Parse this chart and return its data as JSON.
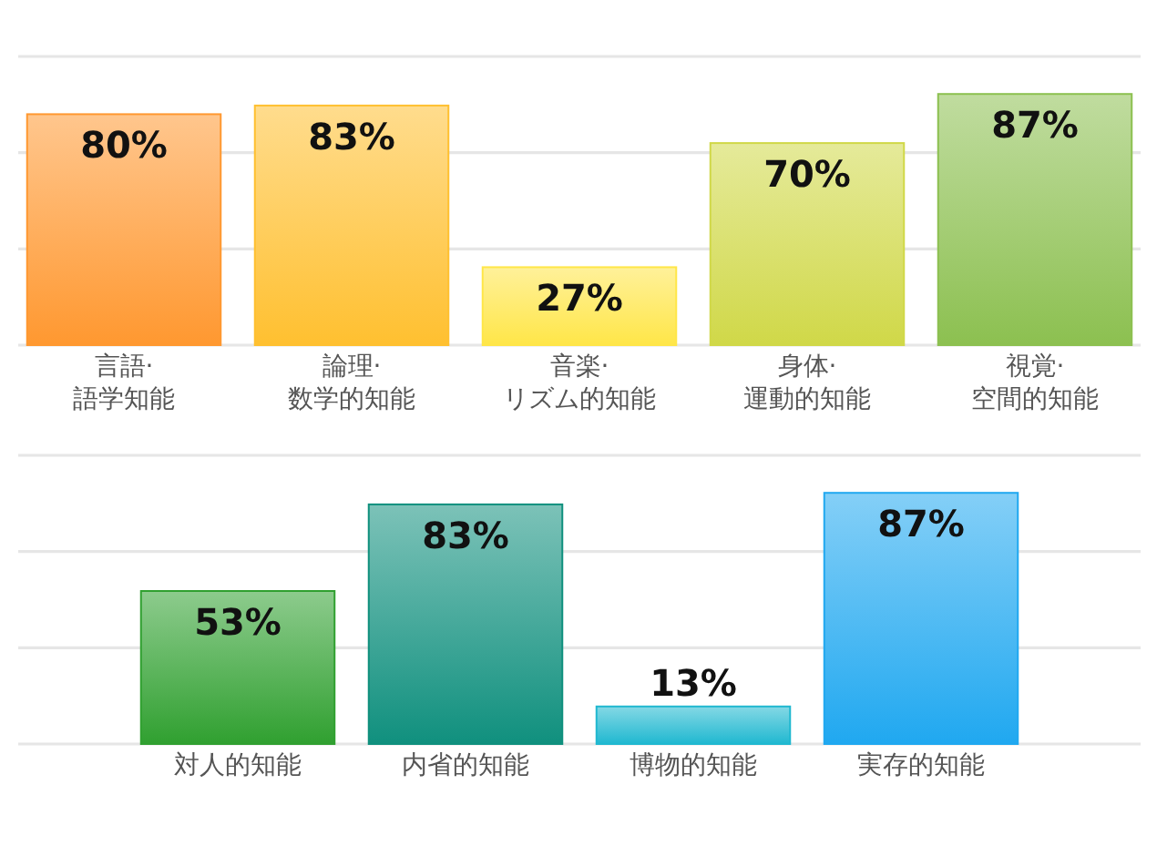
{
  "chart_data": [
    {
      "type": "bar",
      "categories": [
        "言語·\n語学知能",
        "論理·\n数学的知能",
        "音楽·\nリズム的知能",
        "身体·\n運動的知能",
        "視覚·\n空間的知能"
      ],
      "values": [
        80,
        83,
        27,
        70,
        87
      ],
      "colors": [
        "#ff9830",
        "#ffc030",
        "#ffe648",
        "#d0d848",
        "#8cc050"
      ],
      "value_labels": [
        "80%",
        "83%",
        "27%",
        "70%",
        "87%"
      ],
      "ylim": [
        0,
        100
      ],
      "yticks": [
        {
          "value": 0,
          "label": null
        },
        {
          "value": 33.3,
          "label": null
        },
        {
          "value": 66.7,
          "label": null
        },
        {
          "value": 100,
          "label": null
        }
      ],
      "grid": "y",
      "tick_labels": "x"
    },
    {
      "type": "bar",
      "categories": [
        "対人的知能",
        "内省的知能",
        "博物的知能",
        "実存的知能"
      ],
      "values": [
        53,
        83,
        13,
        87
      ],
      "colors": [
        "#30a030",
        "#10907e",
        "#20b8d0",
        "#20a8f0"
      ],
      "value_labels": [
        "53%",
        "83%",
        "13%",
        "87%"
      ],
      "ylim": [
        0,
        100
      ],
      "yticks": [
        {
          "value": 0,
          "label": null
        },
        {
          "value": 33.3,
          "label": null
        },
        {
          "value": 66.7,
          "label": null
        },
        {
          "value": 100,
          "label": null
        }
      ],
      "grid": "y",
      "tick_labels": "x"
    }
  ]
}
